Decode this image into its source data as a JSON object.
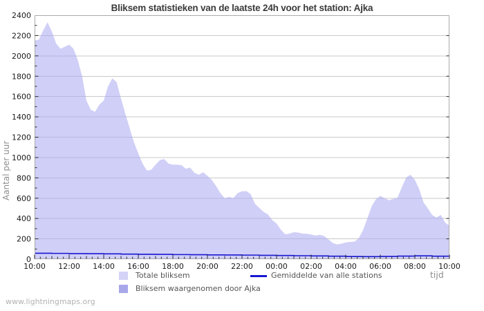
{
  "page": {
    "watermark": "www.lightningmaps.org"
  },
  "axis": {
    "ylabel": "Aantal per uur",
    "xlabel": "tijd"
  },
  "legend": {
    "totale": "Totale bliksem",
    "ajka": "Bliksem waargenomen door Ajka",
    "gemiddelde": "Gemiddelde van alle stations"
  },
  "colors": {
    "area_total": "#d5d3f7",
    "area_total_rgba": "rgba(170,168,240,0.55)",
    "area_ajka": "#a8a7ea",
    "avg_line": "#1717cf",
    "grid": "#c9c9c9",
    "plot_border": "#aaaaaa",
    "tick": "#2a2a2a",
    "tick_label": "#1a1a1a"
  },
  "chart_data": {
    "type": "area",
    "title": "Bliksem statistieken van de laatste 24h voor het station: Ajka",
    "xlabel": "tijd",
    "ylabel": "Aantal per uur",
    "ylim": [
      0,
      2400
    ],
    "y_tick_step": 200,
    "y_minor_step": 100,
    "grid": "horizontal only",
    "legend_position": "bottom",
    "x_span_hours": 24,
    "x_tick_labels": [
      "10:00",
      "12:00",
      "14:00",
      "16:00",
      "18:00",
      "20:00",
      "22:00",
      "00:00",
      "02:00",
      "04:00",
      "06:00",
      "08:00",
      "10:00"
    ],
    "x_minor_tick_minutes": 20,
    "series": [
      {
        "name": "Totale bliksem",
        "type": "area",
        "color": "#d5d3f7",
        "interval_minutes": 15,
        "start_label": "10:00",
        "values": [
          2150,
          2160,
          2250,
          2330,
          2240,
          2120,
          2070,
          2090,
          2110,
          2070,
          1960,
          1800,
          1560,
          1470,
          1450,
          1520,
          1560,
          1700,
          1780,
          1740,
          1580,
          1430,
          1290,
          1150,
          1040,
          940,
          870,
          880,
          930,
          975,
          985,
          940,
          930,
          930,
          925,
          890,
          900,
          850,
          830,
          855,
          820,
          780,
          720,
          650,
          600,
          612,
          600,
          650,
          668,
          670,
          640,
          545,
          505,
          465,
          440,
          385,
          350,
          290,
          245,
          252,
          265,
          262,
          252,
          250,
          242,
          232,
          240,
          228,
          195,
          160,
          145,
          152,
          165,
          170,
          172,
          205,
          285,
          400,
          520,
          590,
          622,
          600,
          580,
          592,
          605,
          710,
          805,
          830,
          780,
          690,
          560,
          500,
          435,
          410,
          435,
          360,
          330
        ]
      },
      {
        "name": "Bliksem waargenomen door Ajka",
        "type": "area",
        "color": "#a8a7ea",
        "values": [],
        "note": "legend entry only; no visible area in the plot (values ~0)"
      },
      {
        "name": "Gemiddelde van alle stations",
        "type": "step-line",
        "color": "#1717cf",
        "interval_minutes": 60,
        "start_label": "10:00",
        "values": [
          58,
          57,
          55,
          54,
          52,
          50,
          48,
          47,
          45,
          44,
          42,
          41,
          40,
          38,
          36,
          34,
          32,
          29,
          26,
          25,
          27,
          30,
          33,
          29,
          27
        ]
      }
    ]
  }
}
